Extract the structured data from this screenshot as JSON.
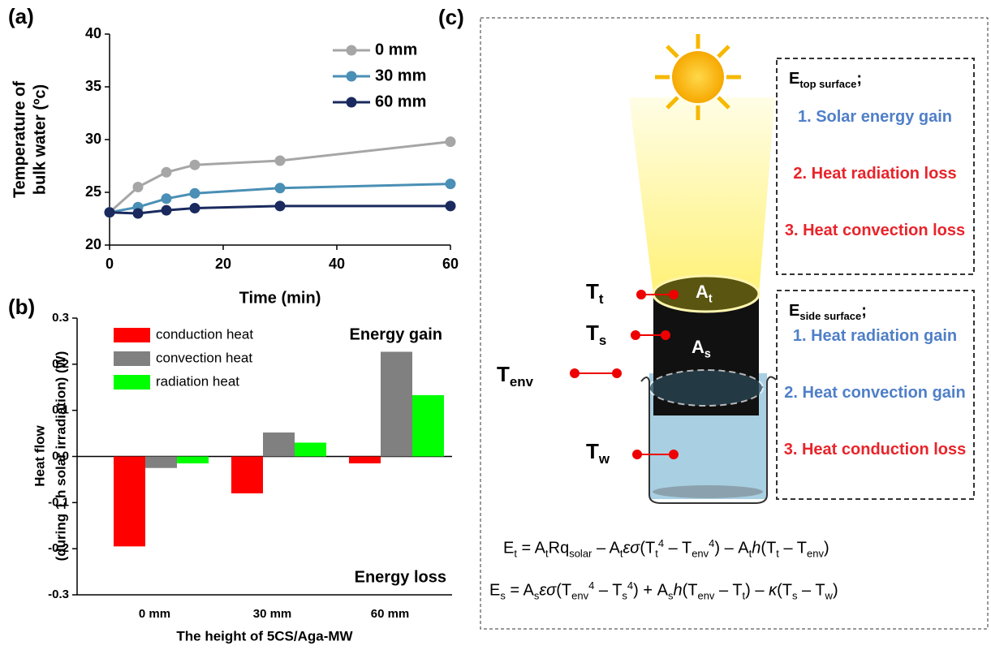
{
  "chart_data": [
    {
      "type": "line",
      "panel_label": "(a)",
      "xlabel": "Time (min)",
      "ylabel": [
        "Temperature of",
        "bulk water (ºc)"
      ],
      "x": [
        0,
        5,
        10,
        15,
        30,
        60
      ],
      "series": [
        {
          "name": "0 mm",
          "color": "#a6a6a6",
          "values": [
            23.1,
            25.5,
            26.9,
            27.6,
            28.0,
            29.8
          ]
        },
        {
          "name": "30 mm",
          "color": "#4a8fb5",
          "values": [
            23.1,
            23.6,
            24.4,
            24.9,
            25.4,
            25.8
          ]
        },
        {
          "name": "60 mm",
          "color": "#1a2a5e",
          "values": [
            23.1,
            23.0,
            23.3,
            23.5,
            23.7,
            23.7
          ]
        }
      ],
      "xlim": [
        0,
        60
      ],
      "xticks": [
        0,
        20,
        40,
        60
      ],
      "ylim": [
        20,
        40
      ],
      "yticks": [
        20,
        25,
        30,
        35,
        40
      ]
    },
    {
      "type": "bar",
      "panel_label": "(b)",
      "xlabel": "The height of 5CS/Aga-MW",
      "ylabel": [
        "Heat flow",
        "(during 1 h solar irradiation) (W)"
      ],
      "annotations": [
        "Energy gain",
        "Energy loss"
      ],
      "categories": [
        "0 mm",
        "30 mm",
        "60 mm"
      ],
      "series": [
        {
          "name": "conduction heat",
          "color": "#ff0000",
          "values": [
            -0.195,
            -0.08,
            -0.015
          ]
        },
        {
          "name": "convection heat",
          "color": "#808080",
          "values": [
            -0.025,
            0.052,
            0.227
          ]
        },
        {
          "name": "radiation heat",
          "color": "#00ff00",
          "values": [
            -0.015,
            0.03,
            0.133
          ]
        }
      ],
      "ylim": [
        -0.3,
        0.3
      ],
      "yticks": [
        -0.3,
        -0.2,
        -0.1,
        {
          "value": 0,
          "label": "0.0"
        },
        0.1,
        0.2,
        0.3
      ]
    }
  ],
  "diagram": {
    "panel_label": "(c)",
    "sensor_labels": [
      {
        "base": "T",
        "sub": "t"
      },
      {
        "base": "T",
        "sub": "s"
      },
      {
        "base": "T",
        "sub": "env"
      },
      {
        "base": "T",
        "sub": "w"
      }
    ],
    "surface_labels": [
      {
        "base": "A",
        "sub": "t"
      },
      {
        "base": "A",
        "sub": "s"
      }
    ],
    "boxes": [
      {
        "title": [
          {
            "base": "E"
          },
          {
            "sub": "top surface"
          },
          {
            "base": ";"
          }
        ],
        "items": [
          {
            "text": "1. Solar energy gain",
            "color": "#4f7fc8"
          },
          {
            "text": "2. Heat radiation loss",
            "color": "#e8242a"
          },
          {
            "text": "3. Heat convection loss",
            "color": "#e8242a"
          }
        ]
      },
      {
        "title": [
          {
            "base": "E"
          },
          {
            "sub": "side surface"
          },
          {
            "base": ";"
          }
        ],
        "items": [
          {
            "text": "1. Heat radiation gain",
            "color": "#4f7fc8"
          },
          {
            "text": "2. Heat convection gain",
            "color": "#4f7fc8"
          },
          {
            "text": "3. Heat conduction loss",
            "color": "#e8242a"
          }
        ]
      }
    ],
    "equations": [
      [
        {
          "base": "E"
        },
        {
          "sub": "t"
        },
        {
          "base": " = A"
        },
        {
          "sub": "t"
        },
        {
          "base": "Rq"
        },
        {
          "sub": "solar"
        },
        {
          "base": " – A"
        },
        {
          "sub": "t"
        },
        {
          "italic": "εσ"
        },
        {
          "base": "(T"
        },
        {
          "sub": "t"
        },
        {
          "sup": "4"
        },
        {
          "base": " – T"
        },
        {
          "sub": "env"
        },
        {
          "sup": "4"
        },
        {
          "base": ") – A"
        },
        {
          "sub": "t"
        },
        {
          "italic": "h"
        },
        {
          "base": "(T"
        },
        {
          "sub": "t"
        },
        {
          "base": " – T"
        },
        {
          "sub": "env"
        },
        {
          "base": ")"
        }
      ],
      [
        {
          "base": "E"
        },
        {
          "sub": "s"
        },
        {
          "base": " = A"
        },
        {
          "sub": "s"
        },
        {
          "italic": "εσ"
        },
        {
          "base": "(T"
        },
        {
          "sub": "env"
        },
        {
          "sup": "4"
        },
        {
          "base": " – T"
        },
        {
          "sub": "s"
        },
        {
          "sup": "4"
        },
        {
          "base": ") + A"
        },
        {
          "sub": "s"
        },
        {
          "italic": "h"
        },
        {
          "base": "(T"
        },
        {
          "sub": "env"
        },
        {
          "base": " – T"
        },
        {
          "sub": "t"
        },
        {
          "base": ") – "
        },
        {
          "italic": "κ"
        },
        {
          "base": "(T"
        },
        {
          "sub": "s"
        },
        {
          "base": " – T"
        },
        {
          "sub": "w"
        },
        {
          "base": ")"
        }
      ]
    ]
  }
}
